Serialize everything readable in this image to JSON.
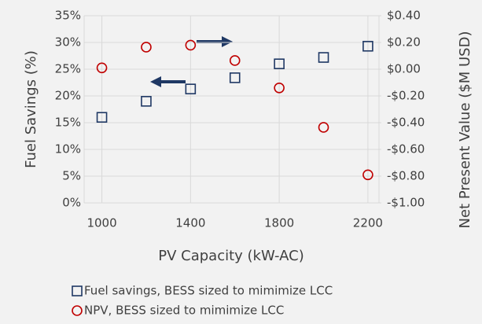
{
  "chart_data": {
    "type": "scatter",
    "x_label": "PV Capacity (kW-AC)",
    "y_label": "Fuel Savings (%)",
    "y2_label": "Net Present Value ($M USD)",
    "x": [
      1000,
      1200,
      1400,
      1600,
      1800,
      2000,
      2200
    ],
    "series": [
      {
        "name": "Fuel savings, BESS sized to mimimize LCC",
        "color": "#1f3864",
        "marker": "square",
        "axis": "y",
        "values": [
          16.0,
          19.0,
          21.3,
          23.4,
          26.0,
          27.2,
          29.3
        ]
      },
      {
        "name": "NPV, BESS sized to mimimize LCC",
        "color": "#c00000",
        "marker": "circle",
        "axis": "y2",
        "values": [
          0.01,
          0.165,
          0.18,
          0.065,
          -0.14,
          -0.435,
          -0.79
        ]
      }
    ],
    "xlim": [
      920,
      2250
    ],
    "xticks": [
      1000,
      1400,
      1800,
      2200
    ],
    "ylim": [
      0,
      35
    ],
    "yticks": [
      {
        "value": 0,
        "label": "0%"
      },
      {
        "value": 5,
        "label": "5%"
      },
      {
        "value": 10,
        "label": "10%"
      },
      {
        "value": 15,
        "label": "15%"
      },
      {
        "value": 20,
        "label": "20%"
      },
      {
        "value": 25,
        "label": "25%"
      },
      {
        "value": 30,
        "label": "30%"
      },
      {
        "value": 35,
        "label": "35%"
      }
    ],
    "y2lim": [
      -1.0,
      0.4
    ],
    "y2ticks": [
      {
        "value": -1.0,
        "label": "-$1.00"
      },
      {
        "value": -0.8,
        "label": "-$0.80"
      },
      {
        "value": -0.6,
        "label": "-$0.60"
      },
      {
        "value": -0.4,
        "label": "-$0.40"
      },
      {
        "value": -0.2,
        "label": "-$0.20"
      },
      {
        "value": 0.0,
        "label": "$0.00"
      },
      {
        "value": 0.2,
        "label": "$0.20"
      },
      {
        "value": 0.4,
        "label": "$0.40"
      }
    ],
    "grid": true,
    "legend": "bottom"
  }
}
